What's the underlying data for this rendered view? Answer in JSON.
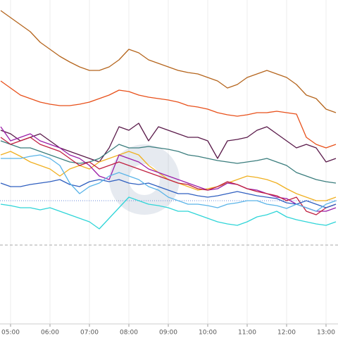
{
  "chart_data": {
    "type": "line",
    "x": [
      "04:45",
      "05:00",
      "05:15",
      "05:30",
      "05:45",
      "06:00",
      "06:15",
      "06:30",
      "06:45",
      "07:00",
      "07:15",
      "07:30",
      "07:45",
      "08:00",
      "08:15",
      "08:30",
      "08:45",
      "09:00",
      "09:15",
      "09:30",
      "09:45",
      "10:00",
      "10:15",
      "10:30",
      "10:45",
      "11:00",
      "11:15",
      "11:30",
      "11:45",
      "12:00",
      "12:15",
      "12:30",
      "12:45",
      "13:00",
      "13:15"
    ],
    "xticks": [
      "05:00",
      "06:00",
      "07:00",
      "08:00",
      "09:00",
      "10:00",
      "11:00",
      "12:00",
      "13:00"
    ],
    "ylim": [
      20,
      480
    ],
    "grid": true,
    "reference_lines": [
      {
        "value": 195,
        "color": "#6a8ad8",
        "style": "dotted"
      },
      {
        "value": 132,
        "color": "#aaaaaa",
        "style": "dashed"
      }
    ],
    "series": [
      {
        "color": "#b5651d",
        "values": [
          465,
          455,
          445,
          435,
          420,
          410,
          400,
          392,
          385,
          380,
          380,
          385,
          395,
          410,
          405,
          395,
          390,
          385,
          380,
          377,
          375,
          370,
          365,
          355,
          360,
          370,
          375,
          380,
          375,
          370,
          360,
          345,
          340,
          325,
          320
        ]
      },
      {
        "color": "#e8501a",
        "values": [
          365,
          355,
          345,
          340,
          335,
          332,
          330,
          330,
          332,
          335,
          340,
          345,
          352,
          350,
          345,
          342,
          340,
          338,
          335,
          330,
          328,
          325,
          320,
          317,
          315,
          317,
          320,
          320,
          322,
          320,
          318,
          285,
          275,
          270,
          275
        ]
      },
      {
        "color": "#5a1a4a",
        "values": [
          295,
          290,
          280,
          285,
          290,
          280,
          270,
          265,
          260,
          255,
          250,
          270,
          300,
          295,
          305,
          280,
          300,
          295,
          290,
          285,
          285,
          280,
          255,
          280,
          282,
          285,
          295,
          300,
          290,
          280,
          270,
          275,
          270,
          250,
          255
        ]
      },
      {
        "color": "#3a7d7d",
        "values": [
          280,
          275,
          270,
          270,
          265,
          260,
          255,
          250,
          248,
          250,
          255,
          265,
          275,
          270,
          270,
          272,
          270,
          268,
          265,
          260,
          258,
          255,
          252,
          250,
          248,
          250,
          252,
          255,
          250,
          245,
          235,
          230,
          225,
          222,
          220
        ]
      },
      {
        "color": "#f0b020",
        "values": [
          260,
          265,
          258,
          250,
          245,
          240,
          230,
          240,
          245,
          240,
          250,
          255,
          260,
          265,
          260,
          245,
          235,
          225,
          220,
          215,
          210,
          212,
          215,
          220,
          225,
          230,
          228,
          225,
          220,
          212,
          205,
          200,
          195,
          195,
          200
        ]
      },
      {
        "color": "#9b1fa8",
        "values": [
          300,
          280,
          285,
          290,
          280,
          275,
          270,
          260,
          255,
          245,
          230,
          225,
          260,
          255,
          250,
          240,
          235,
          230,
          225,
          220,
          215,
          210,
          212,
          220,
          218,
          212,
          210,
          205,
          200,
          198,
          190,
          185,
          180,
          180,
          185
        ]
      },
      {
        "color": "#c02040",
        "values": [
          285,
          275,
          280,
          285,
          275,
          270,
          265,
          255,
          245,
          250,
          240,
          245,
          250,
          245,
          240,
          235,
          230,
          225,
          220,
          218,
          212,
          210,
          215,
          222,
          218,
          212,
          208,
          205,
          202,
          195,
          200,
          180,
          175,
          185,
          190
        ]
      },
      {
        "color": "#3060c0",
        "values": [
          220,
          215,
          215,
          218,
          220,
          222,
          225,
          218,
          215,
          222,
          225,
          222,
          225,
          220,
          218,
          220,
          215,
          210,
          205,
          205,
          202,
          200,
          202,
          205,
          208,
          205,
          202,
          200,
          198,
          192,
          190,
          195,
          190,
          185,
          190
        ]
      },
      {
        "color": "#2fd5d8",
        "values": [
          190,
          188,
          185,
          185,
          182,
          185,
          180,
          175,
          170,
          165,
          155,
          170,
          185,
          200,
          195,
          190,
          188,
          185,
          180,
          180,
          175,
          170,
          165,
          162,
          160,
          165,
          172,
          175,
          180,
          172,
          168,
          165,
          162,
          160,
          165
        ]
      },
      {
        "color": "#5ab4e8",
        "values": [
          255,
          255,
          255,
          258,
          260,
          255,
          245,
          220,
          205,
          215,
          220,
          230,
          235,
          230,
          225,
          215,
          210,
          200,
          195,
          190,
          190,
          188,
          185,
          190,
          192,
          195,
          195,
          190,
          188,
          184,
          190,
          185,
          180,
          190,
          195
        ]
      }
    ]
  }
}
